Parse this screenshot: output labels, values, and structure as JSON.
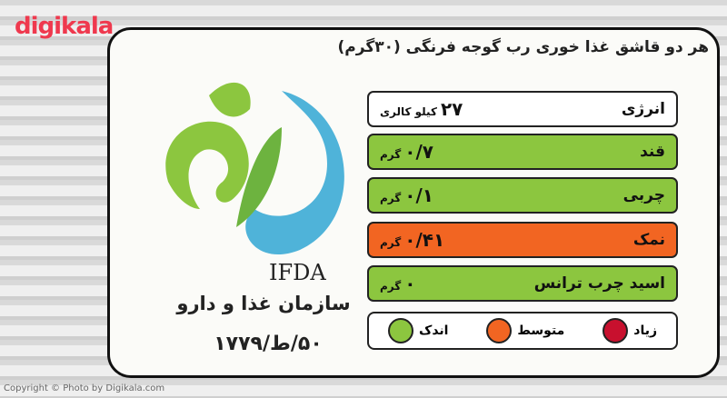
{
  "watermark": "digikala",
  "label": {
    "title": "هر دو قاشق غذا خوری رب گوجه فرنگی (۳۰گرم)",
    "rows": [
      {
        "name": "انرژی",
        "amount": "۲۷",
        "unit": "کیلو کالری"
      },
      {
        "name": "قند",
        "amount": "۰/۷",
        "unit": "گرم"
      },
      {
        "name": "چربی",
        "amount": "۰/۱",
        "unit": "گرم"
      },
      {
        "name": "نمک",
        "amount": "۰/۴۱",
        "unit": "گرم"
      },
      {
        "name": "اسید چرب ترانس",
        "amount": "۰",
        "unit": "گرم"
      }
    ],
    "legend": [
      "زیاد",
      "متوسط",
      "اندک"
    ]
  },
  "logo": {
    "acronym": "IFDA",
    "name": "سازمان غذا و دارو",
    "license": "۵۰/ط/۱۷۷۹"
  },
  "copyright": "Copyright © Photo by Digikala.com"
}
